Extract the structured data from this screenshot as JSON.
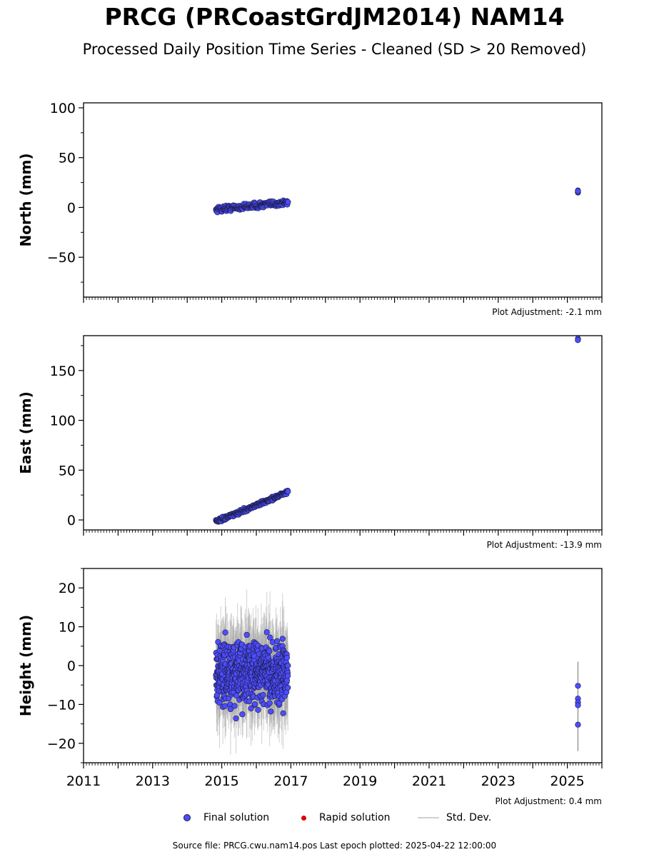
{
  "title": "PRCG (PRCoastGrdJM2014) NAM14",
  "subtitle": "Processed Daily Position Time Series - Cleaned (SD > 20 Removed)",
  "colors": {
    "final": "#4d4dff",
    "final_edge": "#1a1a40",
    "rapid": "#dd0000",
    "std": "#aaaaaa",
    "axis": "#000000"
  },
  "legend": {
    "final": "Final solution",
    "rapid": "Rapid solution",
    "std": "Std. Dev."
  },
  "source": "Source file: PRCG.cwu.nam14.pos  Last epoch plotted: 2025-04-22 12:00:00",
  "chart_data": [
    {
      "type": "scatter",
      "ylabel": "North (mm)",
      "xlim": [
        2011,
        2026
      ],
      "ylim": [
        -90,
        105
      ],
      "yticks": [
        -50,
        0,
        50,
        100
      ],
      "xticks": [
        2011,
        2013,
        2015,
        2017,
        2019,
        2021,
        2023,
        2025
      ],
      "show_x_labels": false,
      "adjustment": "Plot Adjustment: -2.1 mm",
      "cluster": {
        "x_range": [
          "2014-11",
          "2016-12"
        ],
        "y_start": -2,
        "y_end": 5,
        "noise": 2.5,
        "count": 200,
        "std": 1.5
      },
      "late_points": [
        {
          "x": "2025-04-22",
          "y": 15
        },
        {
          "x": "2025-04-22",
          "y": 17
        },
        {
          "x": "2025-04-21",
          "y": 15.5
        },
        {
          "x": "2025-04-22",
          "y": 16.5
        }
      ]
    },
    {
      "type": "scatter",
      "ylabel": "East (mm)",
      "xlim": [
        2011,
        2026
      ],
      "ylim": [
        -10,
        185
      ],
      "yticks": [
        0,
        50,
        100,
        150
      ],
      "xticks": [
        2011,
        2013,
        2015,
        2017,
        2019,
        2021,
        2023,
        2025
      ],
      "show_x_labels": false,
      "adjustment": "Plot Adjustment: -13.9 mm",
      "cluster": {
        "x_range": [
          "2014-11",
          "2016-12"
        ],
        "y_start": -2,
        "y_end": 28,
        "noise": 1.5,
        "count": 200,
        "std": 1.5
      },
      "late_points": [
        {
          "x": "2025-04-22",
          "y": 181
        },
        {
          "x": "2025-04-22",
          "y": 182
        },
        {
          "x": "2025-04-21",
          "y": 180.5
        }
      ]
    },
    {
      "type": "scatter",
      "ylabel": "Height (mm)",
      "xlim": [
        2011,
        2026
      ],
      "ylim": [
        -25,
        25
      ],
      "yticks": [
        -20,
        -10,
        0,
        10,
        20
      ],
      "xticks": [
        2011,
        2013,
        2015,
        2017,
        2019,
        2021,
        2023,
        2025
      ],
      "show_x_labels": true,
      "adjustment": "Plot Adjustment: 0.4 mm",
      "cluster": {
        "x_range": [
          "2014-11",
          "2016-12"
        ],
        "y_start": -2,
        "y_end": -2,
        "noise": 7,
        "count": 600,
        "std": 8
      },
      "late_points": [
        {
          "x": "2025-04-22",
          "y": -5.2
        },
        {
          "x": "2025-04-22",
          "y": -8.5
        },
        {
          "x": "2025-04-22",
          "y": -9.5
        },
        {
          "x": "2025-04-22",
          "y": -10.2
        },
        {
          "x": "2025-04-22",
          "y": -15.2
        }
      ],
      "late_std": [
        -22,
        1
      ]
    }
  ]
}
